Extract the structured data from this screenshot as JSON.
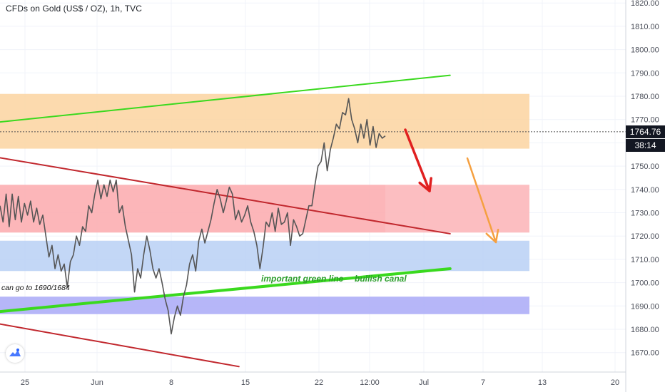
{
  "header": {
    "title": "CFDs on Gold (US$ / OZ), 1h, TVC"
  },
  "price_tags": {
    "last_price": "1764.76",
    "countdown": "38:14",
    "last_color": "#131722",
    "countdown_color": "#131722"
  },
  "logo": {
    "icon": "tradingview-logo-icon"
  },
  "annotations": {
    "target_note": "can go to 1690/1684",
    "green_line_note": "important green line",
    "canal_note": "bullish canal",
    "note_color": "#2a9d2a"
  },
  "colors": {
    "orange_zone": "#fbd3a0",
    "red_zone": "#fba9ad",
    "blue_zone": "#b9d0f5",
    "purple_zone": "#a9a9f7",
    "green_line": "#3ad91e",
    "red_line": "#c1272d",
    "price_line": "#555555",
    "arrow_red": "#e02020",
    "arrow_orange": "#f5a040"
  },
  "chart_data": {
    "type": "line",
    "title": "CFDs on Gold (US$ / OZ), 1h, TVC",
    "y_ticks": [
      "1820.00",
      "1810.00",
      "1800.00",
      "1790.00",
      "1780.00",
      "1770.00",
      "1760.00",
      "1750.00",
      "1740.00",
      "1730.00",
      "1720.00",
      "1710.00",
      "1700.00",
      "1690.00",
      "1680.00",
      "1670.00"
    ],
    "x_ticks": [
      "25",
      "Jun",
      "8",
      "15",
      "22",
      "12:00",
      "Jul",
      "7",
      "13",
      "20"
    ],
    "ylim": [
      1664,
      1823
    ],
    "last_price": 1764.76,
    "zones": [
      {
        "name": "orange",
        "from": 1757.5,
        "to": 1781
      },
      {
        "name": "red",
        "from": 1721.5,
        "to": 1742
      },
      {
        "name": "blue",
        "from": 1705,
        "to": 1718
      },
      {
        "name": "purple",
        "from": 1686.5,
        "to": 1694
      }
    ],
    "series": [
      {
        "values": [
          1733,
          1726,
          1738,
          1724,
          1738,
          1727,
          1737,
          1726,
          1734,
          1729,
          1735,
          1726,
          1732,
          1725,
          1729,
          1720,
          1711,
          1716,
          1706,
          1712,
          1705,
          1708,
          1698,
          1709,
          1712,
          1720,
          1716,
          1724,
          1722,
          1733,
          1730,
          1738,
          1744,
          1736,
          1742,
          1737,
          1744,
          1739,
          1744,
          1730,
          1733,
          1724,
          1718,
          1712,
          1696,
          1706,
          1702,
          1712,
          1720,
          1714,
          1706,
          1702,
          1706,
          1700,
          1693,
          1688,
          1678,
          1685,
          1690,
          1686,
          1694,
          1699,
          1708,
          1712,
          1705,
          1718,
          1723,
          1717,
          1722,
          1727,
          1734,
          1740,
          1736,
          1730,
          1735,
          1741,
          1738,
          1727,
          1731,
          1726,
          1729,
          1733,
          1726,
          1722,
          1716,
          1706,
          1715,
          1726,
          1724,
          1730,
          1722,
          1732,
          1725,
          1726,
          1730,
          1716,
          1727,
          1724,
          1720,
          1721,
          1727,
          1733,
          1733,
          1742,
          1750,
          1752,
          1760,
          1748,
          1757,
          1762,
          1768,
          1766,
          1773,
          1772,
          1779,
          1770,
          1766,
          1760,
          1768,
          1762,
          1770,
          1759,
          1767,
          1758,
          1764,
          1762,
          1763
        ],
        "x_start": "May 21",
        "x_end": "Jun 26",
        "interval": "1h"
      }
    ],
    "lines": [
      {
        "name": "green-upper-channel",
        "color": "green",
        "from": {
          "x": "May 21",
          "y": 1765
        },
        "to": {
          "x": "Jul 11",
          "y": 1789
        }
      },
      {
        "name": "green-lower-channel",
        "color": "green",
        "from": {
          "x": "May 21",
          "y": 1684
        },
        "to": {
          "x": "Jul 11",
          "y": 1706
        }
      },
      {
        "name": "red-resistance",
        "color": "red",
        "from": {
          "x": "May 21",
          "y": 1760
        },
        "to": {
          "x": "Jul 11",
          "y": 1721
        }
      },
      {
        "name": "red-lower",
        "color": "red",
        "from": {
          "x": "May 21",
          "y": 1689
        },
        "to": {
          "x": "Jun 21",
          "y": 1664
        }
      }
    ]
  }
}
